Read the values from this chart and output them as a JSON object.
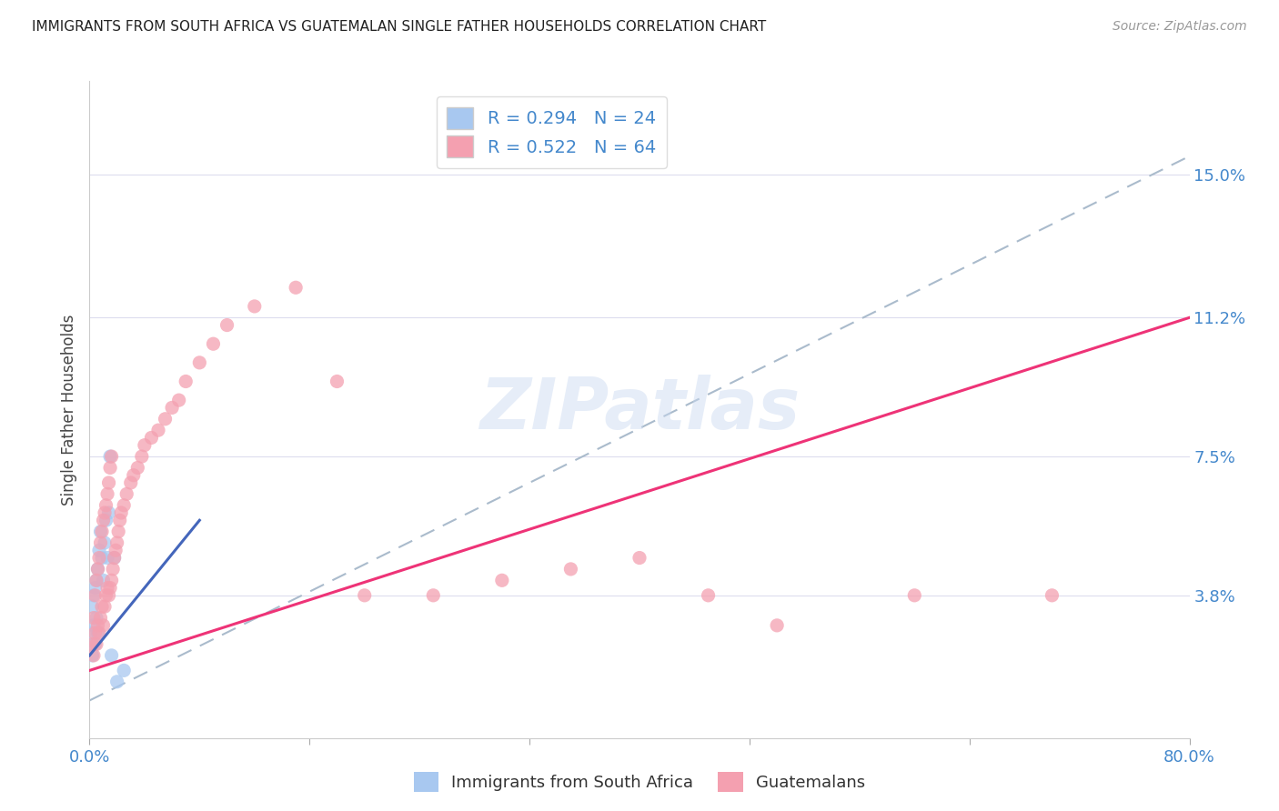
{
  "title": "IMMIGRANTS FROM SOUTH AFRICA VS GUATEMALAN SINGLE FATHER HOUSEHOLDS CORRELATION CHART",
  "source": "Source: ZipAtlas.com",
  "ylabel": "Single Father Households",
  "xlim": [
    0.0,
    0.8
  ],
  "ylim": [
    0.0,
    0.175
  ],
  "xtick_vals": [
    0.0,
    0.16,
    0.32,
    0.48,
    0.64,
    0.8
  ],
  "xticklabels": [
    "0.0%",
    "",
    "",
    "",
    "",
    "80.0%"
  ],
  "ytick_labels_right": [
    "3.8%",
    "7.5%",
    "11.2%",
    "15.0%"
  ],
  "ytick_vals_right": [
    0.038,
    0.075,
    0.112,
    0.15
  ],
  "blue_R": 0.294,
  "blue_N": 24,
  "pink_R": 0.522,
  "pink_N": 64,
  "blue_color": "#a8c8f0",
  "pink_color": "#f4a0b0",
  "blue_line_color": "#4466bb",
  "pink_line_color": "#ee3377",
  "dashed_line_color": "#aabbcc",
  "watermark": "ZIPatlas",
  "legend_text_color": "#4488cc",
  "blue_pts_x": [
    0.001,
    0.002,
    0.002,
    0.003,
    0.003,
    0.004,
    0.004,
    0.005,
    0.005,
    0.006,
    0.006,
    0.007,
    0.008,
    0.009,
    0.01,
    0.011,
    0.012,
    0.013,
    0.014,
    0.015,
    0.016,
    0.018,
    0.02,
    0.025
  ],
  "blue_pts_y": [
    0.028,
    0.022,
    0.035,
    0.03,
    0.038,
    0.025,
    0.04,
    0.032,
    0.042,
    0.028,
    0.045,
    0.05,
    0.055,
    0.048,
    0.042,
    0.052,
    0.058,
    0.048,
    0.06,
    0.075,
    0.022,
    0.048,
    0.015,
    0.018
  ],
  "pink_pts_x": [
    0.002,
    0.003,
    0.003,
    0.004,
    0.004,
    0.005,
    0.005,
    0.006,
    0.006,
    0.007,
    0.007,
    0.008,
    0.008,
    0.009,
    0.009,
    0.01,
    0.01,
    0.011,
    0.011,
    0.012,
    0.012,
    0.013,
    0.013,
    0.014,
    0.014,
    0.015,
    0.015,
    0.016,
    0.016,
    0.017,
    0.018,
    0.019,
    0.02,
    0.021,
    0.022,
    0.023,
    0.025,
    0.027,
    0.03,
    0.032,
    0.035,
    0.038,
    0.04,
    0.045,
    0.05,
    0.055,
    0.06,
    0.065,
    0.07,
    0.08,
    0.09,
    0.1,
    0.12,
    0.15,
    0.18,
    0.2,
    0.25,
    0.3,
    0.35,
    0.4,
    0.45,
    0.5,
    0.6,
    0.7
  ],
  "pink_pts_y": [
    0.025,
    0.022,
    0.032,
    0.028,
    0.038,
    0.025,
    0.042,
    0.03,
    0.045,
    0.028,
    0.048,
    0.032,
    0.052,
    0.035,
    0.055,
    0.03,
    0.058,
    0.035,
    0.06,
    0.038,
    0.062,
    0.04,
    0.065,
    0.038,
    0.068,
    0.04,
    0.072,
    0.042,
    0.075,
    0.045,
    0.048,
    0.05,
    0.052,
    0.055,
    0.058,
    0.06,
    0.062,
    0.065,
    0.068,
    0.07,
    0.072,
    0.075,
    0.078,
    0.08,
    0.082,
    0.085,
    0.088,
    0.09,
    0.095,
    0.1,
    0.105,
    0.11,
    0.115,
    0.12,
    0.095,
    0.038,
    0.038,
    0.042,
    0.045,
    0.048,
    0.038,
    0.03,
    0.038,
    0.038
  ],
  "blue_line_x0": 0.0,
  "blue_line_y0": 0.022,
  "blue_line_x1": 0.08,
  "blue_line_y1": 0.058,
  "pink_line_x0": 0.0,
  "pink_line_y0": 0.018,
  "pink_line_x1": 0.8,
  "pink_line_y1": 0.112,
  "dash_line_x0": 0.0,
  "dash_line_y0": 0.01,
  "dash_line_x1": 0.8,
  "dash_line_y1": 0.155
}
